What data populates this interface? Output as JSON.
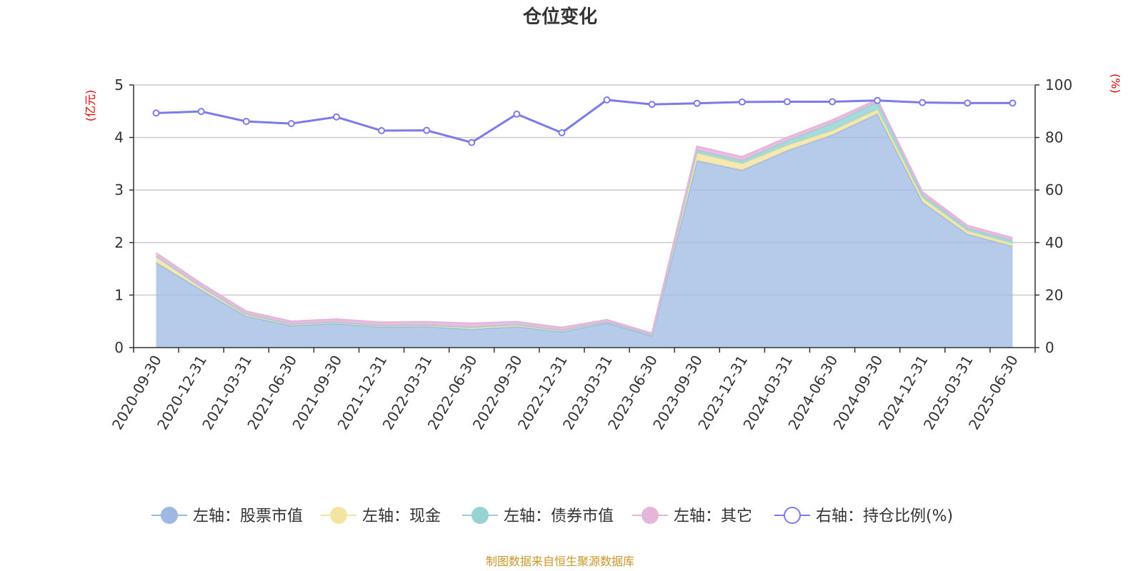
{
  "chart_data": {
    "type": "area",
    "title": "仓位变化",
    "left_unit": "(亿元)",
    "right_unit": "(%)",
    "categories": [
      "2020-09-30",
      "2020-12-31",
      "2021-03-31",
      "2021-06-30",
      "2021-09-30",
      "2021-12-31",
      "2022-03-31",
      "2022-06-30",
      "2022-09-30",
      "2022-12-31",
      "2023-03-31",
      "2023-06-30",
      "2023-09-30",
      "2023-12-31",
      "2024-03-31",
      "2024-06-30",
      "2024-09-30",
      "2024-12-31",
      "2025-03-31",
      "2025-06-30"
    ],
    "left_axis": {
      "min": 0,
      "max": 5,
      "ticks": [
        "0",
        "1",
        "2",
        "3",
        "4",
        "5"
      ]
    },
    "right_axis": {
      "min": 0,
      "max": 100,
      "ticks": [
        "0",
        "20",
        "40",
        "60",
        "80",
        "100"
      ]
    },
    "stacked_series": [
      {
        "name": "左轴：股票市值",
        "color": "#9db8e3",
        "values": [
          1.62,
          1.1,
          0.6,
          0.42,
          0.46,
          0.39,
          0.4,
          0.35,
          0.4,
          0.3,
          0.47,
          0.22,
          3.56,
          3.38,
          3.75,
          4.05,
          4.45,
          2.77,
          2.16,
          1.93
        ]
      },
      {
        "name": "左轴：现金",
        "color": "#f4e4a1",
        "values": [
          0.12,
          0.06,
          0.04,
          0.03,
          0.03,
          0.03,
          0.03,
          0.04,
          0.04,
          0.03,
          0.02,
          0.02,
          0.14,
          0.12,
          0.1,
          0.08,
          0.08,
          0.08,
          0.06,
          0.05
        ]
      },
      {
        "name": "左轴：债券市值",
        "color": "#98d3d3",
        "values": [
          0,
          0,
          0,
          0,
          0,
          0,
          0,
          0,
          0,
          0,
          0,
          0,
          0.06,
          0.06,
          0.09,
          0.14,
          0.14,
          0.06,
          0.05,
          0.06
        ]
      },
      {
        "name": "左轴：其它",
        "color": "#e6b5da",
        "values": [
          0.06,
          0.06,
          0.05,
          0.05,
          0.05,
          0.06,
          0.06,
          0.07,
          0.05,
          0.05,
          0.04,
          0.03,
          0.07,
          0.07,
          0.06,
          0.06,
          0.05,
          0.05,
          0.05,
          0.05
        ]
      }
    ],
    "line_series": {
      "name": "右轴：持仓比例(%)",
      "color": "#7b7bec",
      "values": [
        89.3,
        89.9,
        86.1,
        85.3,
        87.8,
        82.6,
        82.7,
        78.1,
        88.9,
        81.8,
        94.3,
        92.6,
        93.0,
        93.5,
        93.6,
        93.6,
        94.1,
        93.3,
        93.1,
        93.1
      ]
    },
    "grid": true,
    "legend_position": "bottom"
  },
  "footer": {
    "source": "制图数据来自恒生聚源数据库"
  }
}
